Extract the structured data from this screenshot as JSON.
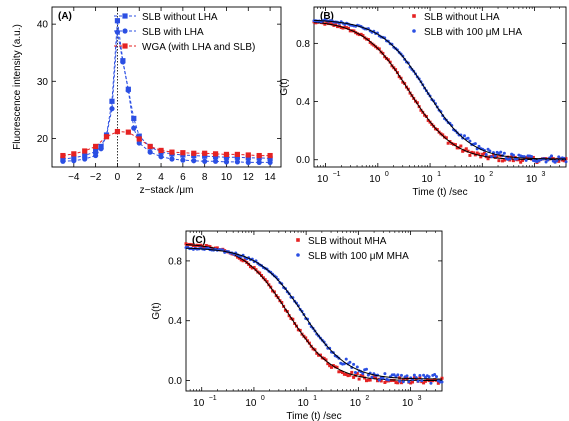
{
  "colors": {
    "red": "#e52222",
    "blue": "#2b4fe3",
    "fit": "#000000"
  },
  "chart_data": [
    {
      "id": "A",
      "panel_label": "(A)",
      "type": "line",
      "xlabel": "z−stack /μm",
      "ylabel": "Fluorescence intensity (a.u.)",
      "xlim": [
        -6,
        15
      ],
      "ylim": [
        15,
        43
      ],
      "xticks": [
        -4,
        -2,
        0,
        2,
        4,
        6,
        8,
        10,
        12,
        14
      ],
      "xtick_labels": [
        "−4",
        "−2",
        "0",
        "2",
        "4",
        "6",
        "8",
        "10",
        "12",
        "14"
      ],
      "yticks": [
        20,
        30,
        40
      ],
      "ytick_labels": [
        "20",
        "30",
        "40"
      ],
      "xscale": "linear",
      "legend_position": "top-right",
      "vline_x": 0,
      "series": [
        {
          "name": "SLB without LHA",
          "color": "#2b4fe3",
          "marker": "square",
          "dash": true,
          "x": [
            -5,
            -4,
            -3,
            -2,
            -1.5,
            -1,
            -0.5,
            0,
            0.5,
            1,
            1.5,
            2,
            3,
            4,
            5,
            6,
            7,
            8,
            9,
            10,
            11,
            12,
            13,
            14
          ],
          "y": [
            16.4,
            16.6,
            17.0,
            17.7,
            18.6,
            20.6,
            26.5,
            40.6,
            33.6,
            28.6,
            23.5,
            20.4,
            18.5,
            17.6,
            17.3,
            17.1,
            17.0,
            16.9,
            16.8,
            16.7,
            16.7,
            16.6,
            16.6,
            16.5
          ]
        },
        {
          "name": "SLB with LHA",
          "color": "#2b4fe3",
          "marker": "circle",
          "dash": true,
          "x": [
            -5,
            -4,
            -3,
            -2,
            -1.5,
            -1,
            -0.5,
            0,
            0.5,
            1,
            1.5,
            2,
            3,
            4,
            5,
            6,
            7,
            8,
            9,
            10,
            11,
            12,
            13,
            14
          ],
          "y": [
            16.0,
            16.1,
            16.4,
            17.0,
            18.2,
            20.5,
            25.2,
            38.6,
            33.4,
            28.4,
            21.8,
            19.2,
            17.6,
            16.8,
            16.4,
            16.2,
            16.1,
            16.0,
            16.0,
            15.9,
            15.9,
            15.8,
            15.8,
            15.8
          ]
        },
        {
          "name": "WGA (with LHA and SLB)",
          "color": "#e52222",
          "marker": "square",
          "dash": true,
          "x": [
            -5,
            -4,
            -3,
            -2,
            -1,
            0,
            1,
            2,
            3,
            4,
            5,
            6,
            7,
            8,
            9,
            10,
            11,
            12,
            13,
            14
          ],
          "y": [
            17.0,
            17.3,
            17.8,
            18.6,
            20.3,
            21.2,
            21.1,
            19.9,
            18.6,
            17.9,
            17.6,
            17.5,
            17.4,
            17.4,
            17.3,
            17.2,
            17.2,
            17.1,
            17.0,
            17.0
          ]
        }
      ]
    },
    {
      "id": "B",
      "panel_label": "(B)",
      "type": "scatter",
      "xlabel": "Time (t) /sec",
      "ylabel": "G(t)",
      "xscale": "log",
      "xlim": [
        0.06,
        4000
      ],
      "ylim": [
        -0.05,
        1.05
      ],
      "xticks": [
        0.1,
        1,
        10,
        100,
        1000
      ],
      "xtick_labels": [
        "10",
        "10",
        "10",
        "10",
        "10"
      ],
      "xtick_exponents": [
        "−1",
        "0",
        "1",
        "2",
        "3"
      ],
      "yticks": [
        0.0,
        0.4,
        0.8
      ],
      "ytick_labels": [
        "0.0",
        "0.4",
        "0.8"
      ],
      "legend_position": "top-right",
      "series": [
        {
          "name": "SLB without LHA",
          "color": "#e52222",
          "marker": "square",
          "model": {
            "g0": 0.96,
            "tau": 4.0,
            "baseline": 0.0,
            "noise_late": 0.02
          }
        },
        {
          "name": "SLB with 100 μM LHA",
          "color": "#2b4fe3",
          "marker": "circle",
          "model": {
            "g0": 0.96,
            "tau": 8.5,
            "baseline": 0.005,
            "noise_late": 0.025
          }
        }
      ]
    },
    {
      "id": "C",
      "panel_label": "(C)",
      "type": "scatter",
      "xlabel": "Time (t) /sec",
      "ylabel": "G(t)",
      "xscale": "log",
      "xlim": [
        0.05,
        4000
      ],
      "ylim": [
        -0.07,
        1.0
      ],
      "xticks": [
        0.1,
        1,
        10,
        100,
        1000
      ],
      "xtick_labels": [
        "10",
        "10",
        "10",
        "10",
        "10"
      ],
      "xtick_exponents": [
        "−1",
        "0",
        "1",
        "2",
        "3"
      ],
      "yticks": [
        0.0,
        0.4,
        0.8
      ],
      "ytick_labels": [
        "0.0",
        "0.4",
        "0.8"
      ],
      "legend_position": "top-right",
      "series": [
        {
          "name": "SLB without MHA",
          "color": "#e52222",
          "marker": "square",
          "model": {
            "g0": 0.92,
            "tau": 4.5,
            "baseline": 0.0,
            "noise_late": 0.02
          }
        },
        {
          "name": "SLB with 100 μM MHA",
          "color": "#2b4fe3",
          "marker": "circle",
          "model": {
            "g0": 0.88,
            "tau": 9.0,
            "baseline": 0.01,
            "noise_late": 0.03
          }
        }
      ]
    }
  ]
}
